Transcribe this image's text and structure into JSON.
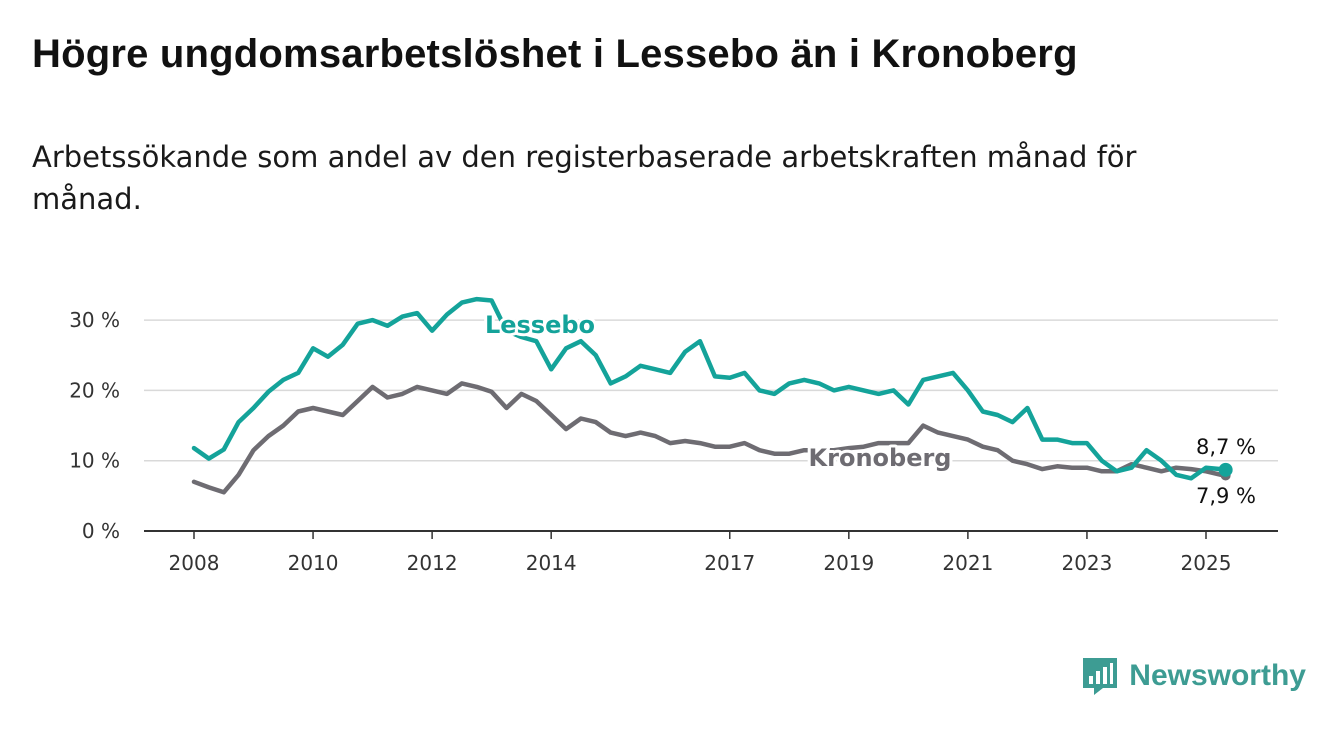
{
  "title": "Högre ungdomsarbetslöshet i Lessebo än i Kronoberg",
  "subtitle": "Arbetssökande som andel av den registerbaserade arbetskraften månad för månad.",
  "brand": {
    "name": "Newsworthy",
    "icon": "newsworthy-bar-chart-logo-icon",
    "color": "#3d9c93"
  },
  "chart_data": {
    "type": "line",
    "title": "Högre ungdomsarbetslöshet i Lessebo än i Kronoberg",
    "subtitle": "Arbetssökande som andel av den registerbaserade arbetskraften månad för månad.",
    "ylim": [
      0,
      35
    ],
    "y_ticks": [
      0,
      10,
      20,
      30
    ],
    "y_tick_labels": [
      "0 %",
      "10 %",
      "20 %",
      "30 %"
    ],
    "x_ticks": [
      2008,
      2010,
      2012,
      2014,
      2017,
      2019,
      2021,
      2023,
      2025
    ],
    "x_tick_labels": [
      "2008",
      "2010",
      "2012",
      "2014",
      "2017",
      "2019",
      "2021",
      "2023",
      "2025"
    ],
    "xlim": [
      2007.7,
      2026.2
    ],
    "grid": "horizontal",
    "legend": "direct labels on lines",
    "series": [
      {
        "name": "Lessebo",
        "color": "#14a39a",
        "end_label": "8,7 %",
        "end_value": 8.7,
        "x": [
          2008.0,
          2008.25,
          2008.5,
          2008.75,
          2009.0,
          2009.25,
          2009.5,
          2009.75,
          2010.0,
          2010.25,
          2010.5,
          2010.75,
          2011.0,
          2011.25,
          2011.5,
          2011.75,
          2012.0,
          2012.25,
          2012.5,
          2012.75,
          2013.0,
          2013.25,
          2013.5,
          2013.75,
          2014.0,
          2014.25,
          2014.5,
          2014.75,
          2015.0,
          2015.25,
          2015.5,
          2015.75,
          2016.0,
          2016.25,
          2016.5,
          2016.75,
          2017.0,
          2017.25,
          2017.5,
          2017.75,
          2018.0,
          2018.25,
          2018.5,
          2018.75,
          2019.0,
          2019.25,
          2019.5,
          2019.75,
          2020.0,
          2020.25,
          2020.5,
          2020.75,
          2021.0,
          2021.25,
          2021.5,
          2021.75,
          2022.0,
          2022.25,
          2022.5,
          2022.75,
          2023.0,
          2023.25,
          2023.5,
          2023.75,
          2024.0,
          2024.25,
          2024.5,
          2024.75,
          2025.0,
          2025.25,
          2025.33
        ],
        "values": [
          11.8,
          10.3,
          11.6,
          15.5,
          17.5,
          19.8,
          21.5,
          22.5,
          26.0,
          24.8,
          26.5,
          29.5,
          30.0,
          29.2,
          30.5,
          31.0,
          28.5,
          30.8,
          32.5,
          33.0,
          32.8,
          28.5,
          27.6,
          27.0,
          23.0,
          26.0,
          27.0,
          25.0,
          21.0,
          22.0,
          23.5,
          23.0,
          22.5,
          25.5,
          27.0,
          22.0,
          21.8,
          22.5,
          20.0,
          19.5,
          21.0,
          21.5,
          21.0,
          20.0,
          20.5,
          20.0,
          19.5,
          20.0,
          18.0,
          21.5,
          22.0,
          22.5,
          20.0,
          17.0,
          16.5,
          15.5,
          17.5,
          13.0,
          13.0,
          12.5,
          12.5,
          10.0,
          8.5,
          9.0,
          11.5,
          10.0,
          8.0,
          7.5,
          9.0,
          8.8,
          8.7
        ]
      },
      {
        "name": "Kronoberg",
        "color": "#6e6c72",
        "end_label": "7,9 %",
        "end_value": 7.9,
        "x": [
          2008.0,
          2008.25,
          2008.5,
          2008.75,
          2009.0,
          2009.25,
          2009.5,
          2009.75,
          2010.0,
          2010.25,
          2010.5,
          2010.75,
          2011.0,
          2011.25,
          2011.5,
          2011.75,
          2012.0,
          2012.25,
          2012.5,
          2012.75,
          2013.0,
          2013.25,
          2013.5,
          2013.75,
          2014.0,
          2014.25,
          2014.5,
          2014.75,
          2015.0,
          2015.25,
          2015.5,
          2015.75,
          2016.0,
          2016.25,
          2016.5,
          2016.75,
          2017.0,
          2017.25,
          2017.5,
          2017.75,
          2018.0,
          2018.25,
          2018.5,
          2018.75,
          2019.0,
          2019.25,
          2019.5,
          2019.75,
          2020.0,
          2020.25,
          2020.5,
          2020.75,
          2021.0,
          2021.25,
          2021.5,
          2021.75,
          2022.0,
          2022.25,
          2022.5,
          2022.75,
          2023.0,
          2023.25,
          2023.5,
          2023.75,
          2024.0,
          2024.25,
          2024.5,
          2024.75,
          2025.0,
          2025.25,
          2025.33
        ],
        "values": [
          7.0,
          6.2,
          5.5,
          8.0,
          11.5,
          13.5,
          15.0,
          17.0,
          17.5,
          17.0,
          16.5,
          18.5,
          20.5,
          19.0,
          19.5,
          20.5,
          20.0,
          19.5,
          21.0,
          20.5,
          19.8,
          17.5,
          19.5,
          18.5,
          16.5,
          14.5,
          16.0,
          15.5,
          14.0,
          13.5,
          14.0,
          13.5,
          12.5,
          12.8,
          12.5,
          12.0,
          12.0,
          12.5,
          11.5,
          11.0,
          11.0,
          11.5,
          11.5,
          11.5,
          11.8,
          12.0,
          12.5,
          12.5,
          12.5,
          15.0,
          14.0,
          13.5,
          13.0,
          12.0,
          11.5,
          10.0,
          9.5,
          8.8,
          9.2,
          9.0,
          9.0,
          8.5,
          8.5,
          9.5,
          9.0,
          8.5,
          9.0,
          8.8,
          8.5,
          8.0,
          7.9
        ]
      }
    ]
  }
}
